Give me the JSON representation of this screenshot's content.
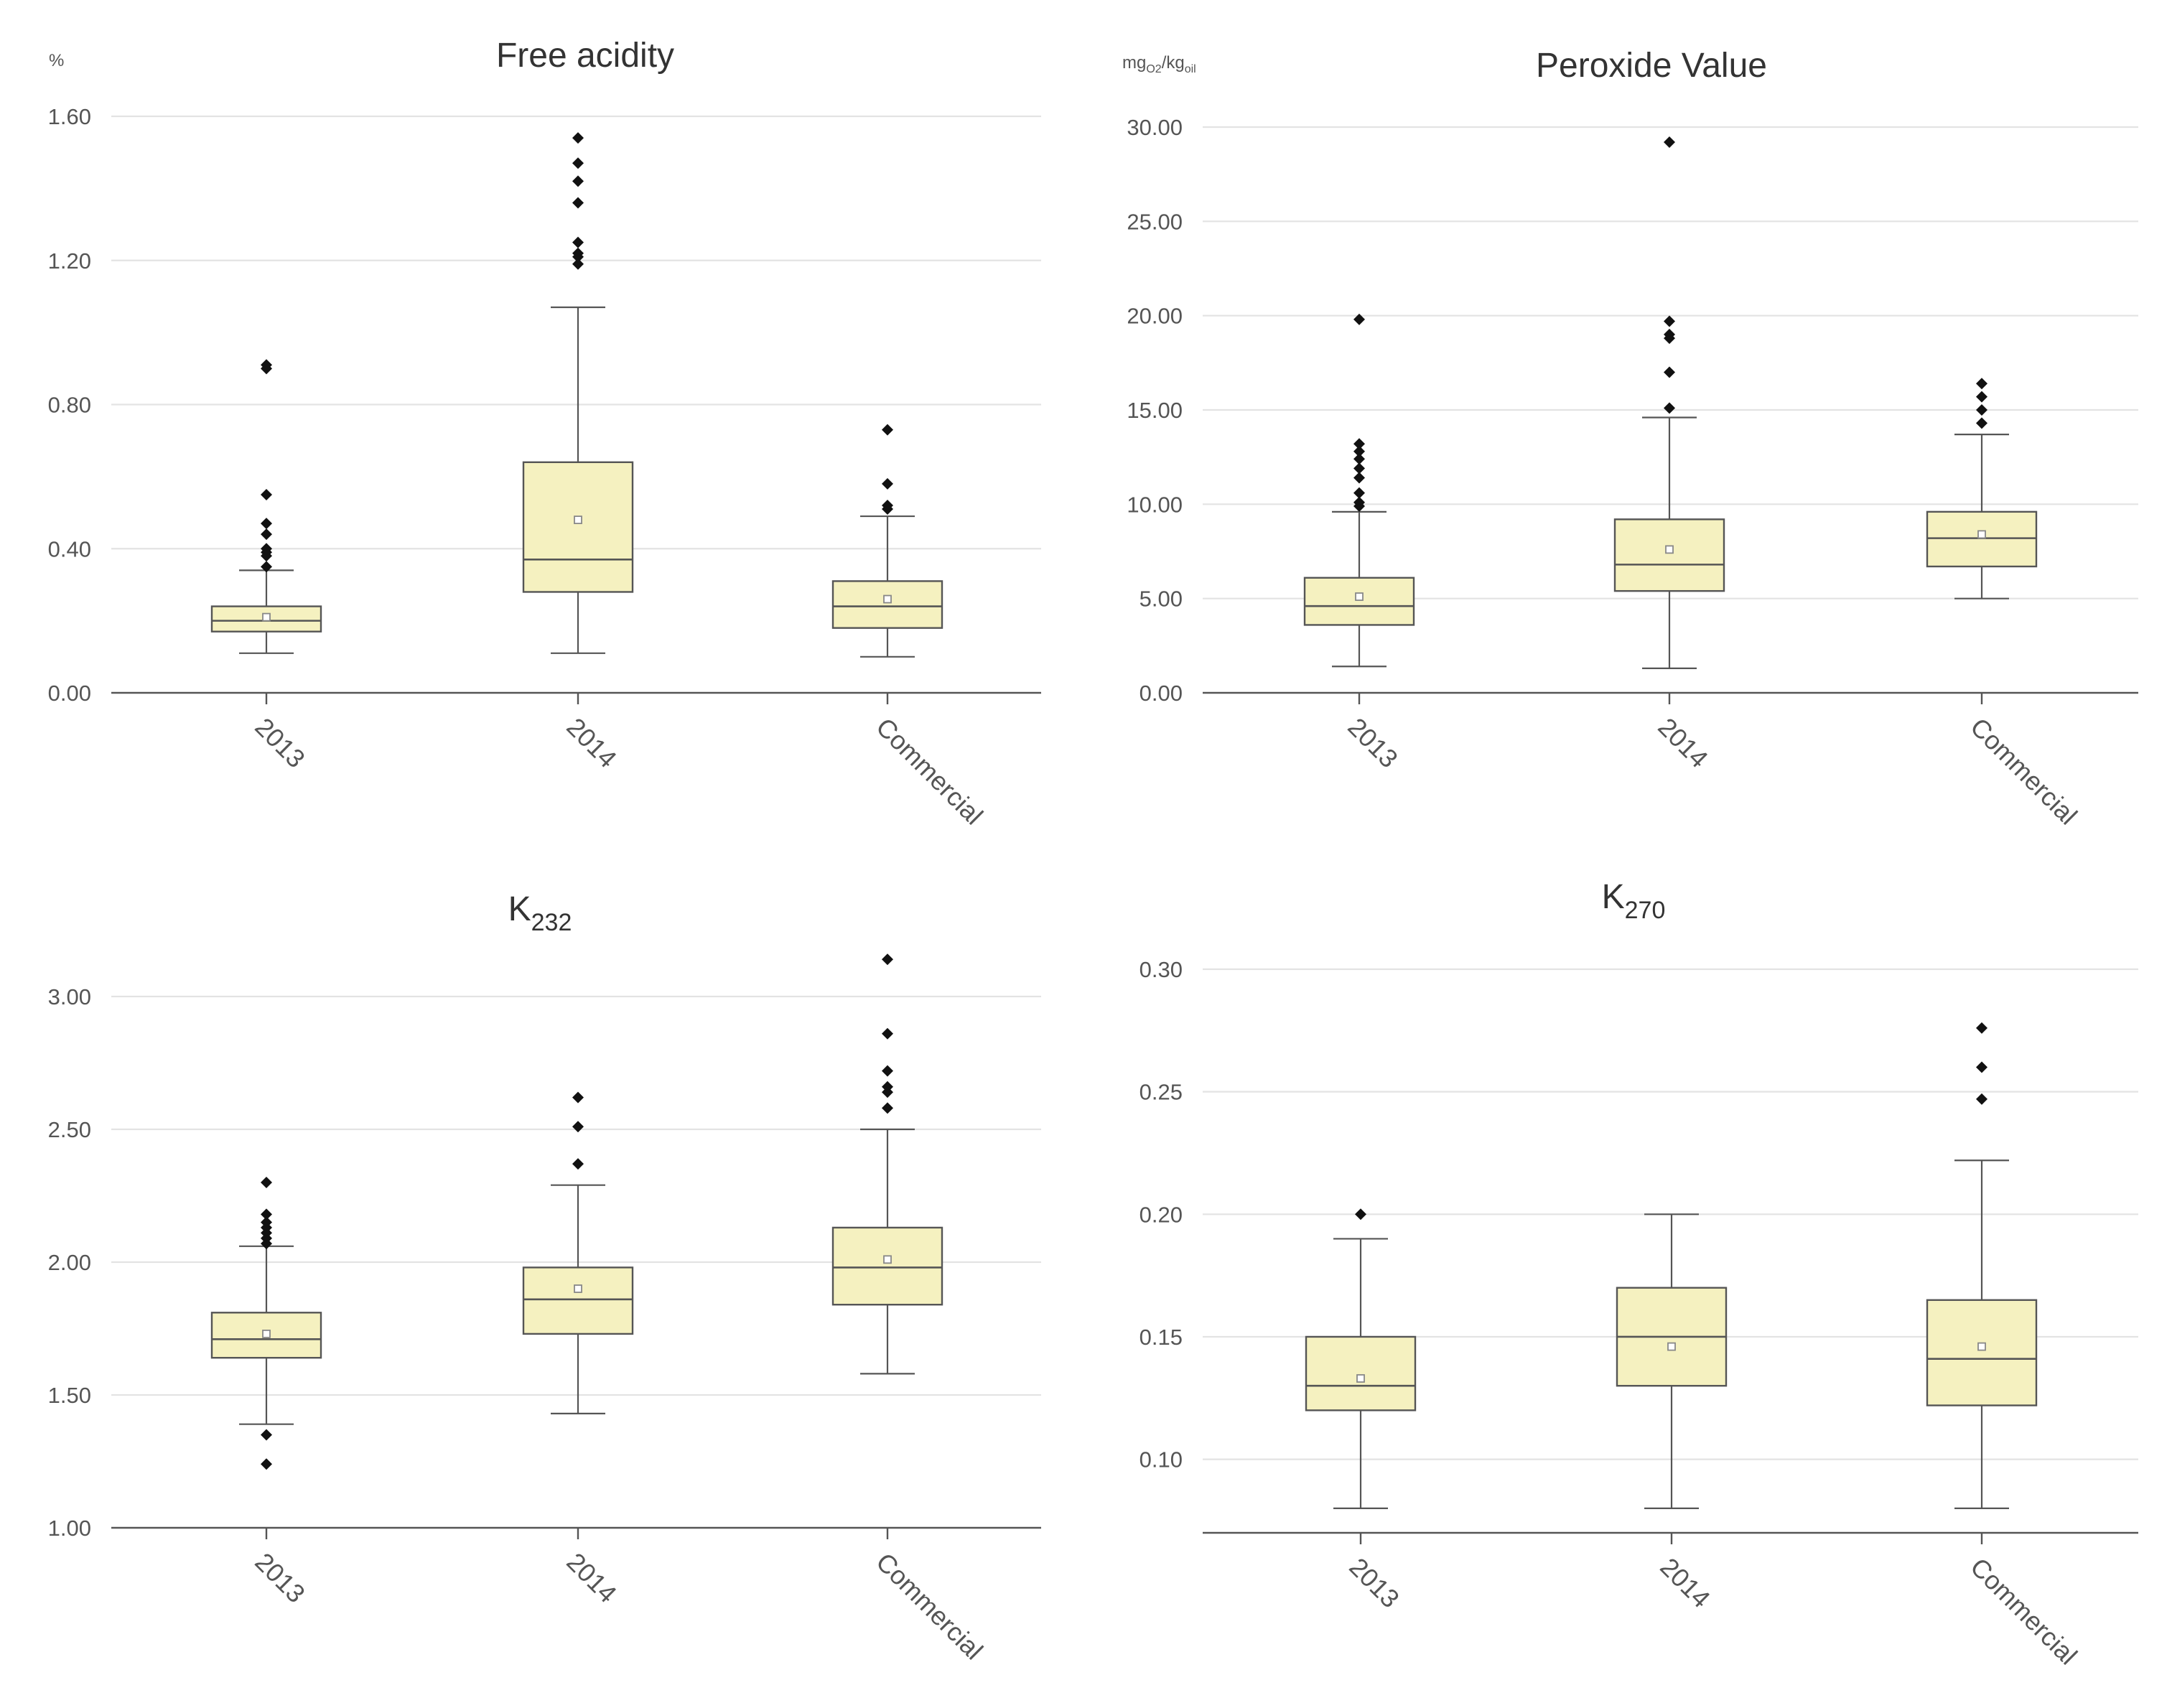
{
  "chart_data": [
    {
      "type": "boxplot",
      "title": "Free acidity",
      "title_sub": "",
      "unit": "%",
      "ylim": [
        0,
        1.6
      ],
      "yticks": [
        "0.00",
        "0.40",
        "0.80",
        "1.20",
        "1.60"
      ],
      "categories": [
        "2013",
        "2014",
        "Commercial"
      ],
      "boxes": [
        {
          "category": "2013",
          "whisker_low": 0.11,
          "q1": 0.17,
          "median": 0.2,
          "q3": 0.24,
          "whisker_high": 0.34,
          "mean": 0.21,
          "outliers": [
            0.35,
            0.38,
            0.39,
            0.4,
            0.44,
            0.47,
            0.55,
            0.9,
            0.91
          ]
        },
        {
          "category": "2014",
          "whisker_low": 0.11,
          "q1": 0.28,
          "median": 0.37,
          "q3": 0.64,
          "whisker_high": 1.07,
          "mean": 0.48,
          "outliers": [
            1.19,
            1.21,
            1.22,
            1.25,
            1.36,
            1.42,
            1.47,
            1.54
          ]
        },
        {
          "category": "Commercial",
          "whisker_low": 0.1,
          "q1": 0.18,
          "median": 0.24,
          "q3": 0.31,
          "whisker_high": 0.49,
          "mean": 0.26,
          "outliers": [
            0.51,
            0.52,
            0.58,
            0.73
          ]
        }
      ]
    },
    {
      "type": "boxplot",
      "title": "Peroxide Value",
      "title_sub": "",
      "unit": "mg",
      "unit_sub1": "O2",
      "unit_mid": "/kg",
      "unit_sub2": "oil",
      "ylim": [
        0,
        30
      ],
      "yticks": [
        "0.00",
        "5.00",
        "10.00",
        "15.00",
        "20.00",
        "25.00",
        "30.00"
      ],
      "categories": [
        "2013",
        "2014",
        "Commercial"
      ],
      "boxes": [
        {
          "category": "2013",
          "whisker_low": 1.4,
          "q1": 3.6,
          "median": 4.6,
          "q3": 6.1,
          "whisker_high": 9.6,
          "mean": 5.1,
          "outliers": [
            9.9,
            10.1,
            10.6,
            11.4,
            11.9,
            12.4,
            12.8,
            13.2,
            19.8
          ]
        },
        {
          "category": "2014",
          "whisker_low": 1.3,
          "q1": 5.4,
          "median": 6.8,
          "q3": 9.2,
          "whisker_high": 14.6,
          "mean": 7.6,
          "outliers": [
            15.1,
            17.0,
            18.8,
            19.0,
            19.7,
            29.2
          ]
        },
        {
          "category": "Commercial",
          "whisker_low": 5.0,
          "q1": 6.7,
          "median": 8.2,
          "q3": 9.6,
          "whisker_high": 13.7,
          "mean": 8.4,
          "outliers": [
            14.3,
            15.0,
            15.7,
            16.4
          ]
        }
      ]
    },
    {
      "type": "boxplot",
      "title": "K",
      "title_sub": "232",
      "unit": "",
      "ylim": [
        1.0,
        3.0
      ],
      "yticks": [
        "1.00",
        "1.50",
        "2.00",
        "2.50",
        "3.00"
      ],
      "categories": [
        "2013",
        "2014",
        "Commercial"
      ],
      "boxes": [
        {
          "category": "2013",
          "whisker_low": 1.39,
          "q1": 1.64,
          "median": 1.71,
          "q3": 1.81,
          "whisker_high": 2.06,
          "mean": 1.73,
          "outliers": [
            1.24,
            1.35,
            2.07,
            2.09,
            2.11,
            2.13,
            2.15,
            2.18,
            2.3
          ]
        },
        {
          "category": "2014",
          "whisker_low": 1.43,
          "q1": 1.73,
          "median": 1.86,
          "q3": 1.98,
          "whisker_high": 2.29,
          "mean": 1.9,
          "outliers": [
            2.37,
            2.51,
            2.62
          ]
        },
        {
          "category": "Commercial",
          "whisker_low": 1.58,
          "q1": 1.84,
          "median": 1.98,
          "q3": 2.13,
          "whisker_high": 2.5,
          "mean": 2.01,
          "outliers": [
            2.58,
            2.64,
            2.66,
            2.72,
            2.86,
            3.14
          ]
        }
      ]
    },
    {
      "type": "boxplot",
      "title": "K",
      "title_sub": "270",
      "unit": "",
      "ylim": [
        0.07,
        0.3
      ],
      "yticks": [
        "0.10",
        "0.15",
        "0.20",
        "0.25",
        "0.30"
      ],
      "categories": [
        "2013",
        "2014",
        "Commercial"
      ],
      "boxes": [
        {
          "category": "2013",
          "whisker_low": 0.08,
          "q1": 0.12,
          "median": 0.13,
          "q3": 0.15,
          "whisker_high": 0.19,
          "mean": 0.133,
          "outliers": [
            0.2
          ]
        },
        {
          "category": "2014",
          "whisker_low": 0.08,
          "q1": 0.13,
          "median": 0.15,
          "q3": 0.17,
          "whisker_high": 0.2,
          "mean": 0.146,
          "outliers": []
        },
        {
          "category": "Commercial",
          "whisker_low": 0.08,
          "q1": 0.122,
          "median": 0.141,
          "q3": 0.165,
          "whisker_high": 0.222,
          "mean": 0.146,
          "outliers": [
            0.247,
            0.26,
            0.276
          ]
        }
      ]
    }
  ],
  "colors": {
    "box_fill": "#f5f1c0",
    "stroke": "#555555",
    "outlier": "#111111",
    "grid": "#e3e3e3"
  }
}
